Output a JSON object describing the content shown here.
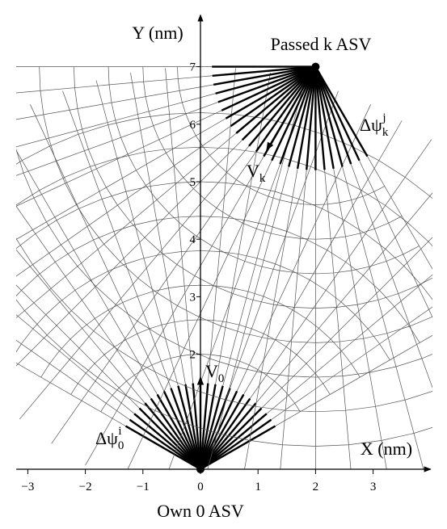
{
  "chart_data": {
    "type": "diagram",
    "xlabel": "X (nm)",
    "ylabel": "Y (nm)",
    "xlim": [
      -3.2,
      4
    ],
    "ylim": [
      0,
      7.9
    ],
    "xticks": [
      {
        "value": -3,
        "label": "−3"
      },
      {
        "value": -2,
        "label": "−2"
      },
      {
        "value": -1,
        "label": "−1"
      },
      0,
      1,
      2,
      3
    ],
    "yticks": [
      2,
      3,
      4,
      5,
      6,
      7
    ],
    "ships": [
      {
        "name": "Own 0 ASV",
        "x": 0,
        "y": 0,
        "velocity": {
          "base": "V",
          "sub": "0"
        },
        "sector": {
          "base": "Δψ",
          "sub": "0",
          "sup": "i"
        }
      },
      {
        "name": "Passed k ASV",
        "x": 2,
        "y": 7,
        "velocity": {
          "base": "V",
          "sub": "k"
        },
        "sector": {
          "base": "Δψ",
          "sub": "k",
          "sup": "j"
        }
      }
    ]
  }
}
